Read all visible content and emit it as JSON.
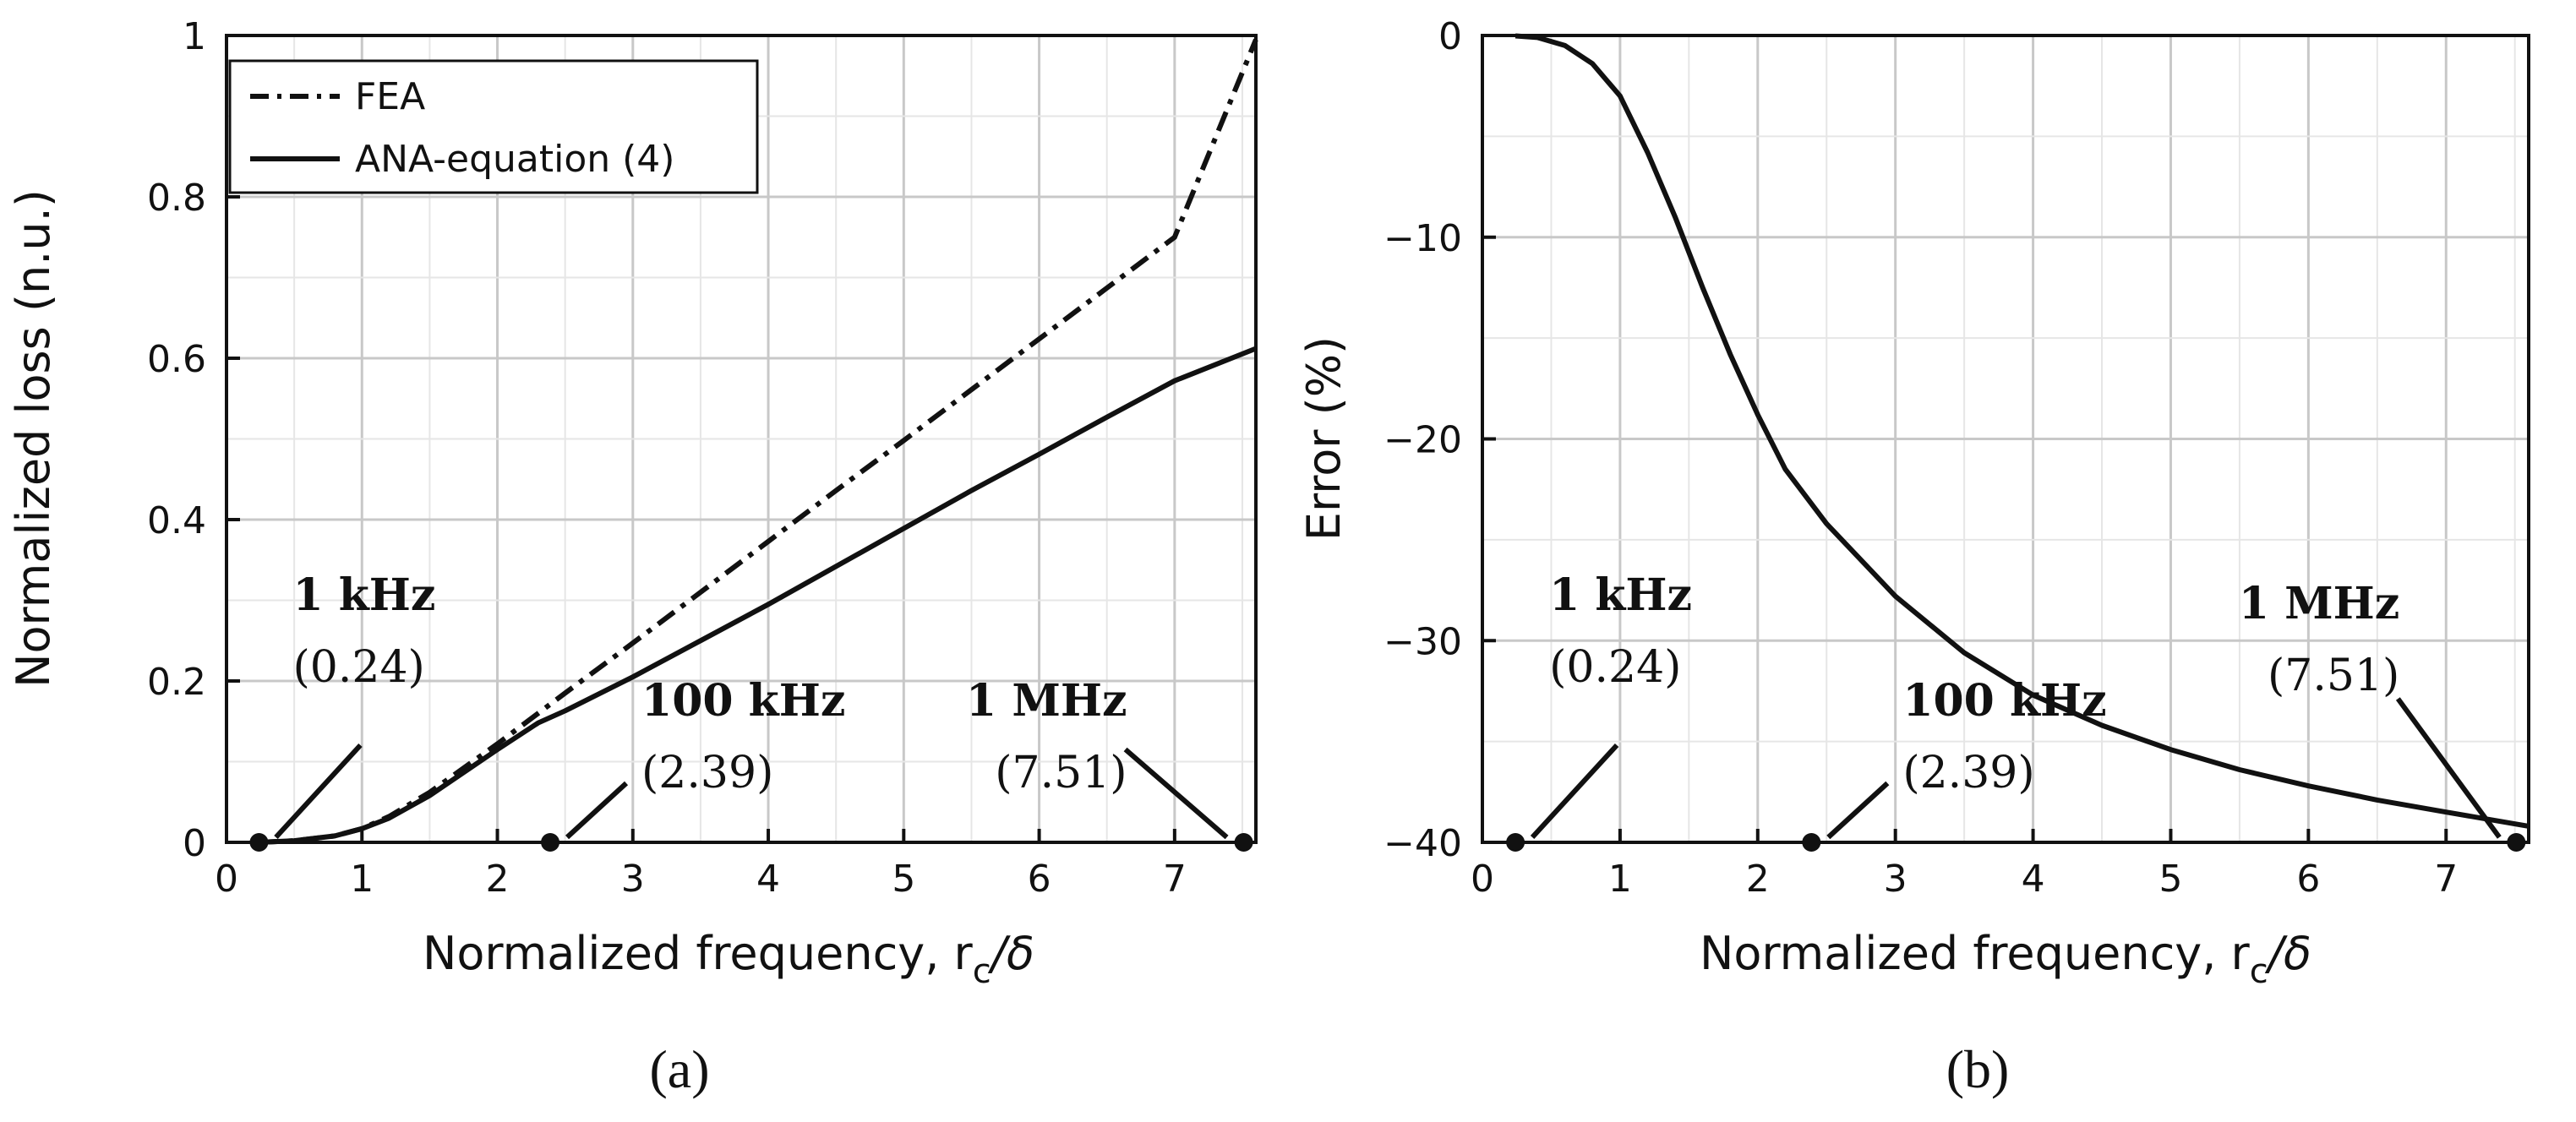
{
  "chart_data": [
    {
      "id": "a",
      "type": "line",
      "caption": "(a)",
      "xlabel": "Normalized frequency, r",
      "xlabel_sub": "c",
      "xlabel_tail": "/δ",
      "ylabel": "Normalized loss (n.u.)",
      "xlim": [
        0,
        7.6
      ],
      "ylim": [
        0,
        1
      ],
      "xticks": [
        0,
        1,
        2,
        3,
        4,
        5,
        6,
        7
      ],
      "yticks": [
        0,
        0.2,
        0.4,
        0.6,
        0.8,
        1
      ],
      "ytick_labels": [
        "0",
        "0.2",
        "0.4",
        "0.6",
        "0.8",
        "1"
      ],
      "grid": true,
      "legend_position": "top-left",
      "series": [
        {
          "name": "FEA",
          "style": "dashdot",
          "x": [
            0.24,
            0.5,
            0.8,
            1.0,
            1.2,
            1.5,
            2.0,
            2.5,
            3.0,
            3.5,
            4.0,
            4.5,
            5.0,
            5.5,
            6.0,
            6.5,
            7.0,
            7.6
          ],
          "y": [
            0.0,
            0.002,
            0.008,
            0.017,
            0.032,
            0.062,
            0.122,
            0.185,
            0.247,
            0.31,
            0.373,
            0.436,
            0.498,
            0.561,
            0.624,
            0.687,
            0.75,
            0.995
          ]
        },
        {
          "name": "ANA-equation (4)",
          "style": "solid",
          "x": [
            0.24,
            0.5,
            0.8,
            1.0,
            1.2,
            1.5,
            2.0,
            2.3,
            2.5,
            3.0,
            3.5,
            4.0,
            4.5,
            5.0,
            5.5,
            6.0,
            6.5,
            7.0,
            7.6
          ],
          "y": [
            0.0,
            0.002,
            0.008,
            0.017,
            0.03,
            0.058,
            0.115,
            0.148,
            0.163,
            0.205,
            0.25,
            0.295,
            0.342,
            0.389,
            0.436,
            0.481,
            0.527,
            0.572,
            0.612
          ]
        }
      ],
      "markers": [
        {
          "x": 0.24,
          "y": 0,
          "label": "1 kHz",
          "value": "(0.24)"
        },
        {
          "x": 2.39,
          "y": 0,
          "label": "100 kHz",
          "value": "(2.39)"
        },
        {
          "x": 7.51,
          "y": 0,
          "label": "1 MHz",
          "value": "(7.51)"
        }
      ]
    },
    {
      "id": "b",
      "type": "line",
      "caption": "(b)",
      "xlabel": "Normalized frequency, r",
      "xlabel_sub": "c",
      "xlabel_tail": "/δ",
      "ylabel": "Error (%)",
      "xlim": [
        0,
        7.6
      ],
      "ylim": [
        -40,
        0
      ],
      "xticks": [
        0,
        1,
        2,
        3,
        4,
        5,
        6,
        7
      ],
      "yticks": [
        -40,
        -30,
        -20,
        -10,
        0
      ],
      "ytick_labels": [
        "−40",
        "−30",
        "−20",
        "−10",
        "0"
      ],
      "grid": true,
      "series": [
        {
          "name": "Error",
          "style": "solid",
          "x": [
            0.24,
            0.4,
            0.6,
            0.8,
            1.0,
            1.2,
            1.4,
            1.6,
            1.8,
            2.0,
            2.2,
            2.5,
            3.0,
            3.5,
            4.0,
            4.5,
            5.0,
            5.5,
            6.0,
            6.5,
            7.0,
            7.6
          ],
          "y": [
            -0.02,
            -0.1,
            -0.5,
            -1.4,
            -3.0,
            -5.8,
            -9.0,
            -12.5,
            -15.8,
            -18.8,
            -21.5,
            -24.2,
            -27.8,
            -30.6,
            -32.7,
            -34.2,
            -35.4,
            -36.4,
            -37.2,
            -37.9,
            -38.5,
            -39.2
          ]
        }
      ],
      "markers": [
        {
          "x": 0.24,
          "y": -40,
          "label": "1 kHz",
          "value": "(0.24)"
        },
        {
          "x": 2.39,
          "y": -40,
          "label": "100 kHz",
          "value": "(2.39)"
        },
        {
          "x": 7.51,
          "y": -40,
          "label": "1 MHz",
          "value": "(7.51)"
        }
      ]
    }
  ]
}
